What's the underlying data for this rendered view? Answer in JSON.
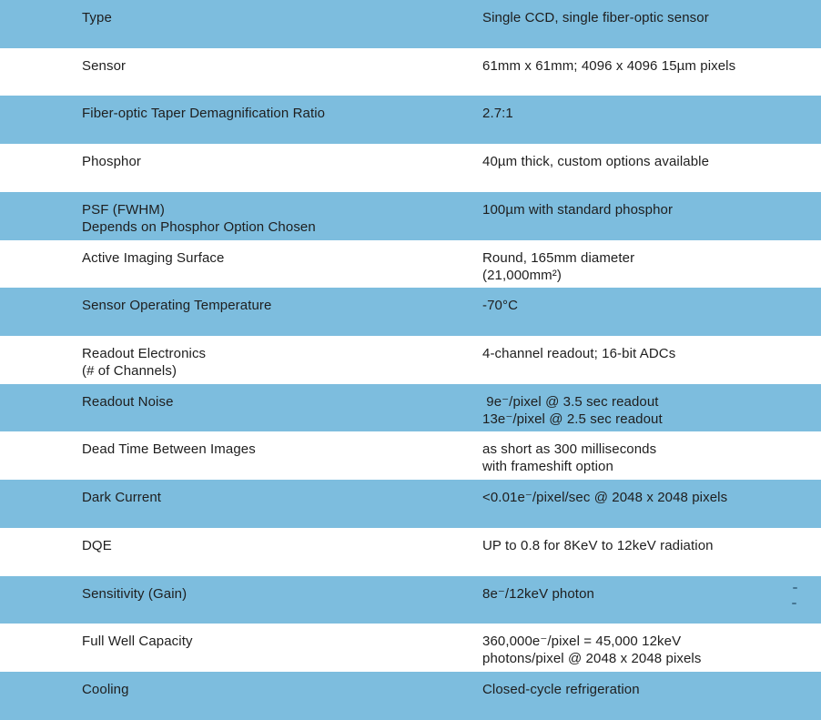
{
  "colors": {
    "row_shaded_blue": "#7dbdde",
    "row_plain_white": "#ffffff",
    "text": "#1e1e1e"
  },
  "table": {
    "description": "detector-specification-table",
    "rows": [
      {
        "label": "Type",
        "value": "Single CCD, single fiber-optic sensor",
        "shaded": true
      },
      {
        "label": "Sensor",
        "value": "61mm x 61mm; 4096 x 4096 15µm pixels",
        "shaded": false
      },
      {
        "label": "Fiber-optic Taper Demagnification Ratio",
        "value": "2.7:1",
        "shaded": true
      },
      {
        "label": "Phosphor",
        "value": "40µm thick, custom options available",
        "shaded": false
      },
      {
        "label": "PSF (FWHM)\nDepends on Phosphor Option Chosen",
        "value": "100µm with standard phosphor",
        "shaded": true
      },
      {
        "label": "Active Imaging Surface",
        "value": "Round, 165mm diameter\n(21,000mm²)",
        "shaded": false
      },
      {
        "label": "Sensor Operating Temperature",
        "value": "-70°C",
        "shaded": true
      },
      {
        "label": "Readout Electronics\n(# of Channels)",
        "value": "4-channel readout; 16-bit ADCs",
        "shaded": false
      },
      {
        "label": "Readout Noise",
        "value": " 9e⁻/pixel @ 3.5 sec readout\n13e⁻/pixel @ 2.5 sec readout",
        "shaded": true
      },
      {
        "label": "Dead Time Between Images",
        "value": "as short as 300 milliseconds\nwith frameshift option",
        "shaded": false
      },
      {
        "label": "Dark Current",
        "value": "<0.01e⁻/pixel/sec @ 2048 x 2048 pixels",
        "shaded": true
      },
      {
        "label": "DQE",
        "value": "UP to 0.8 for 8KeV to 12keV radiation",
        "shaded": false
      },
      {
        "label": "Sensitivity (Gain)",
        "value": "8e⁻/12keV photon",
        "shaded": true
      },
      {
        "label": "Full Well Capacity",
        "value": "360,000e⁻/pixel = 45,000 12keV\nphotons/pixel @ 2048 x 2048 pixels",
        "shaded": false
      },
      {
        "label": "Cooling",
        "value": "Closed-cycle refrigeration",
        "shaded": true
      }
    ]
  }
}
